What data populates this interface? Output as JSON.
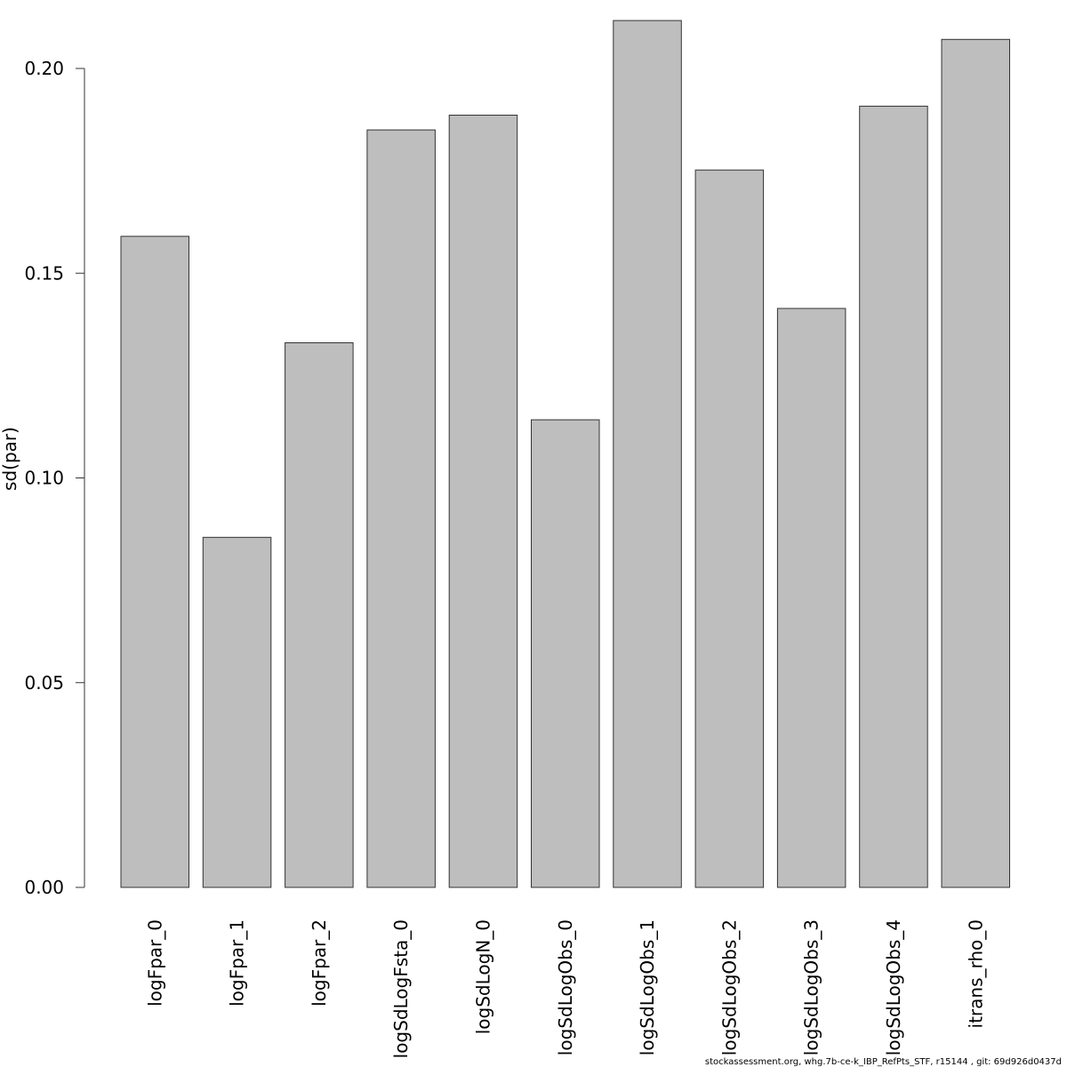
{
  "chart_data": {
    "type": "bar",
    "categories": [
      "logFpar_0",
      "logFpar_1",
      "logFpar_2",
      "logSdLogFsta_0",
      "logSdLogN_0",
      "logSdLogObs_0",
      "logSdLogObs_1",
      "logSdLogObs_2",
      "logSdLogObs_3",
      "logSdLogObs_4",
      "itrans_rho_0"
    ],
    "values": [
      0.159,
      0.0855,
      0.133,
      0.185,
      0.1886,
      0.1142,
      0.2117,
      0.1752,
      0.1414,
      0.1908,
      0.2071
    ],
    "title": "",
    "xlabel": "",
    "ylabel": "sd(par)",
    "ylim": [
      0,
      0.21
    ],
    "yticks": [
      0.0,
      0.05,
      0.1,
      0.15,
      0.2
    ],
    "ytick_labels": [
      "0.00",
      "0.05",
      "0.10",
      "0.15",
      "0.20"
    ],
    "grid": false,
    "bar_color": "#bebebe",
    "border_color": "#333333"
  },
  "footer": {
    "text": "stockassessment.org, whg.7b-ce-k_IBP_RefPts_STF, r15144 , git: 69d926d0437d"
  }
}
